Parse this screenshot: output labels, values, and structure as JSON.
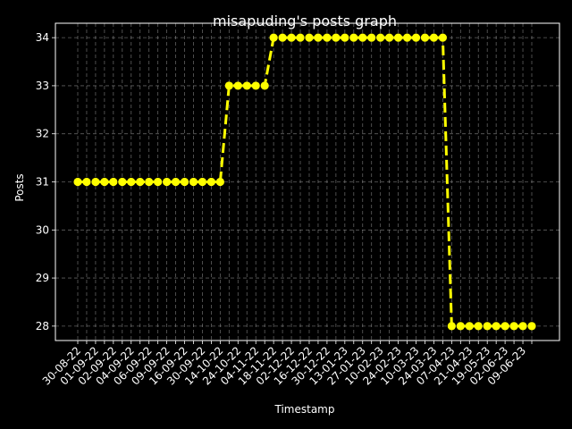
{
  "chart_data": {
    "type": "line",
    "title": "misapuding's posts graph",
    "xlabel": "Timestamp",
    "ylabel": "Posts",
    "ylim": [
      27.7,
      34.3
    ],
    "yticks": [
      28,
      29,
      30,
      31,
      32,
      33,
      34
    ],
    "grid": true,
    "background": "#000000",
    "foreground": "#ffffff",
    "grid_color": "#b0b0b0",
    "line_color": "#ffff00",
    "line_style": "dashed",
    "marker": "circle",
    "x_tick_labels": [
      "30-08-22",
      "01-09-22",
      "02-09-22",
      "04-09-22",
      "06-09-22",
      "09-09-22",
      "16-09-22",
      "30-09-22",
      "14-10-22",
      "24-10-22",
      "04-11-22",
      "18-11-22",
      "02-12-22",
      "16-12-22",
      "30-12-22",
      "13-01-23",
      "27-01-23",
      "10-02-23",
      "24-02-23",
      "10-03-23",
      "24-03-23",
      "07-04-23",
      "21-04-23",
      "19-05-23",
      "02-06-23",
      "09-06-23"
    ],
    "values": [
      31,
      31,
      31,
      31,
      31,
      31,
      31,
      31,
      31,
      31,
      31,
      31,
      31,
      31,
      31,
      31,
      31,
      33,
      33,
      33,
      33,
      33,
      34,
      34,
      34,
      34,
      34,
      34,
      34,
      34,
      34,
      34,
      34,
      34,
      34,
      34,
      34,
      34,
      34,
      34,
      34,
      34,
      28,
      28,
      28,
      28,
      28,
      28,
      28,
      28,
      28,
      28
    ]
  }
}
